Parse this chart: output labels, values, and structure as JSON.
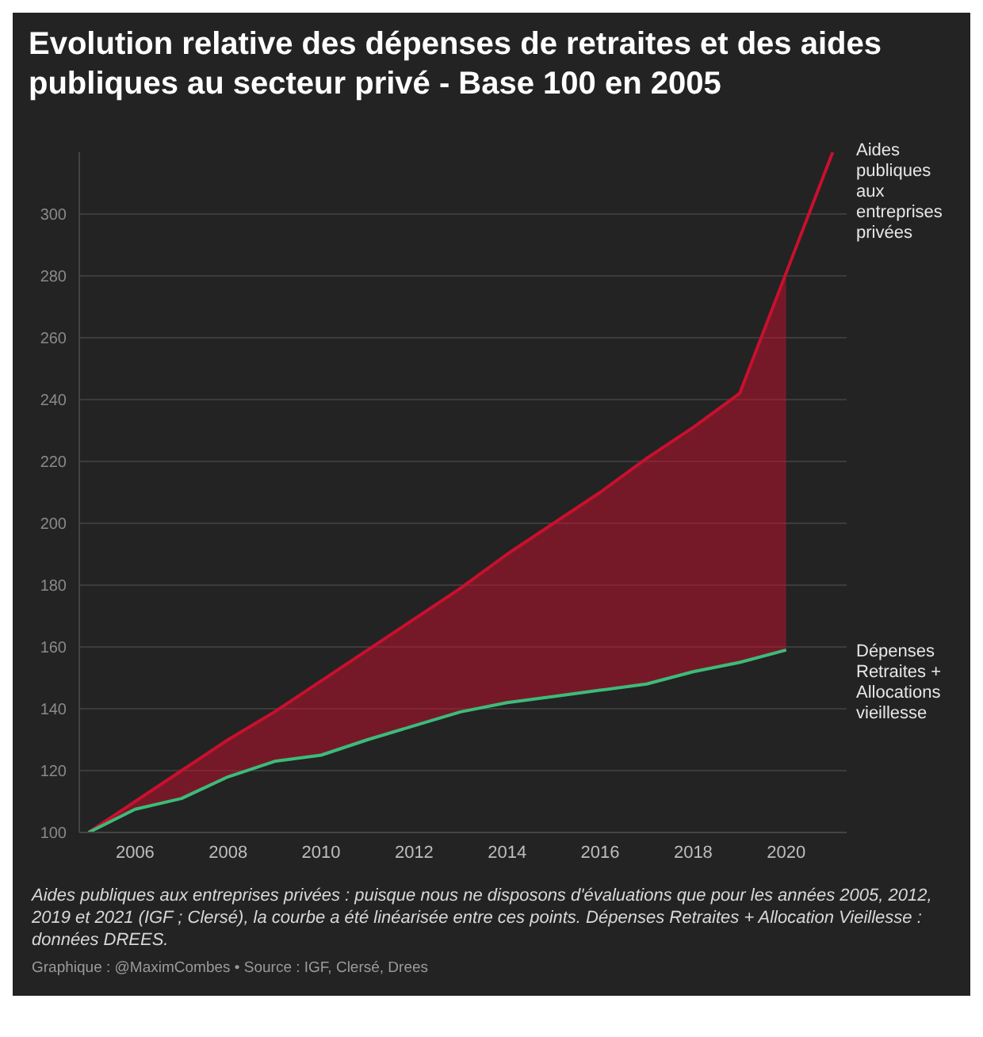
{
  "chart_data": {
    "type": "line",
    "title": "Evolution relative des dépenses de retraites et des aides publiques au secteur privé - Base 100 en 2005",
    "annotations": [
      "Aides publiques aux entreprises privées : puisque nous ne disposons d'évaluations que pour les années 2005, 2012, 2019 et 2021 (IGF ; Clersé), la courbe a été linéarisée entre ces points. Dépenses Retraites + Allocation Vieillesse : données DREES.",
      "Graphique : @MaximCombes • Source : IGF, Clersé, Drees"
    ],
    "series": [
      {
        "name": "Aides publiques aux entreprises privées",
        "color": "#c8102e",
        "x": [
          2005,
          2006,
          2007,
          2008,
          2009,
          2010,
          2011,
          2012,
          2013,
          2014,
          2015,
          2016,
          2017,
          2018,
          2019,
          2020,
          2021
        ],
        "values": [
          100,
          110,
          120,
          130,
          139,
          149,
          159,
          169,
          179,
          190,
          200,
          210,
          221,
          231,
          242,
          281,
          320
        ],
        "lower": [
          100,
          107.5,
          111,
          118,
          123,
          125,
          130,
          134.5,
          139,
          142,
          144,
          146,
          148,
          152,
          155,
          159,
          null
        ],
        "upper": [
          100,
          110,
          120,
          130,
          139,
          149,
          159,
          169,
          179,
          190,
          200,
          210,
          221,
          231,
          242,
          281,
          null
        ]
      },
      {
        "name": "Dépenses Retraites + Allocations vieillesse",
        "color": "#3dbb7a",
        "x": [
          2005,
          2006,
          2007,
          2008,
          2009,
          2010,
          2011,
          2012,
          2013,
          2014,
          2015,
          2016,
          2017,
          2018,
          2019,
          2020
        ],
        "values": [
          100,
          107.5,
          111,
          118,
          123,
          125,
          130,
          134.5,
          139,
          142,
          144,
          146,
          148,
          152,
          155,
          159
        ]
      }
    ],
    "xlim": [
      2004.8,
      2021.3
    ],
    "xticks": [
      2006,
      2008,
      2010,
      2012,
      2014,
      2016,
      2018,
      2020
    ],
    "ylim": [
      100,
      320
    ],
    "yticks": [
      100,
      120,
      140,
      160,
      180,
      200,
      220,
      240,
      260,
      280,
      300
    ],
    "grid": "y",
    "marker": "none"
  }
}
